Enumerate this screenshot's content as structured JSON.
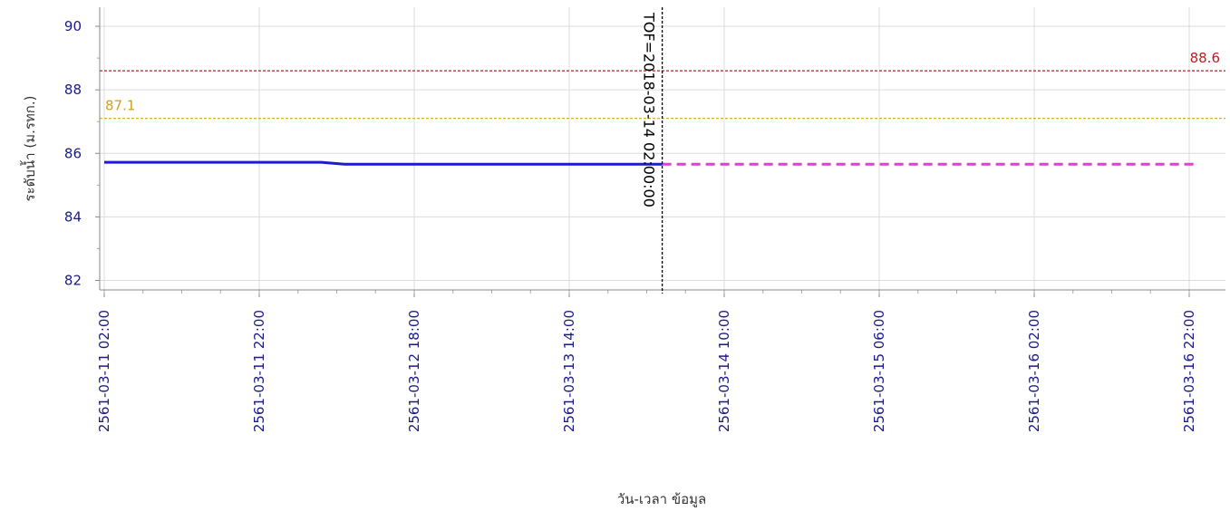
{
  "chart_data": {
    "type": "line",
    "xlabel": "วัน-เวลา ข้อมูล",
    "ylabel": "ระดับน้ำ (ม.รทก.)",
    "ylim": [
      81.7,
      90.6
    ],
    "yticks": [
      82,
      84,
      86,
      88,
      90
    ],
    "x_range": [
      "2561-03-11 02:00",
      "2561-03-16 23:00"
    ],
    "xticks": [
      "2561-03-11 02:00",
      "2561-03-11 22:00",
      "2561-03-12 18:00",
      "2561-03-13 14:00",
      "2561-03-14 10:00",
      "2561-03-15 06:00",
      "2561-03-16 02:00",
      "2561-03-16 22:00"
    ],
    "grid": true,
    "series": [
      {
        "style": "solid",
        "color": "#1c1ccc",
        "points": [
          {
            "x": "2561-03-11 02:00",
            "y": 85.72
          },
          {
            "x": "2561-03-12 06:00",
            "y": 85.72
          },
          {
            "x": "2561-03-12 09:00",
            "y": 85.66
          },
          {
            "x": "2561-03-14 02:00",
            "y": 85.66
          }
        ]
      },
      {
        "style": "dashed",
        "color": "#e040d0",
        "points": [
          {
            "x": "2561-03-14 02:00",
            "y": 85.66
          },
          {
            "x": "2561-03-16 23:00",
            "y": 85.66
          }
        ]
      }
    ],
    "thresholds": [
      {
        "value": 88.6,
        "label": "88.6",
        "color": "#b22222"
      },
      {
        "value": 87.1,
        "label": "87.1",
        "color": "#d4a017"
      }
    ],
    "markers": [
      {
        "x": "2561-03-14 02:00",
        "label": "TOF=2018-03-14 02:00:00",
        "color": "#000000"
      }
    ]
  }
}
